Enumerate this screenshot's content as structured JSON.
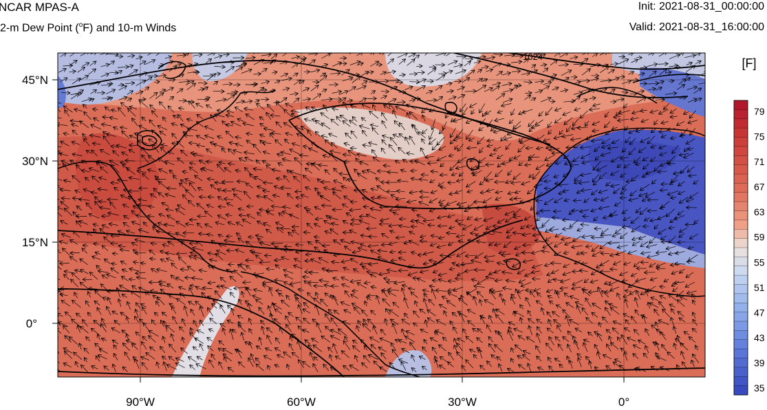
{
  "header": {
    "model": "NCAR MPAS-A",
    "field_prefix": "2-m Dew Point (",
    "field_degree": "o",
    "field_suffix": "F) and 10-m Winds",
    "init": "Init: 2021-08-31_00:00:00",
    "valid": "Valid: 2021-08-31_16:00:00"
  },
  "map": {
    "lat_labels": [
      "45°N",
      "30°N",
      "15°N",
      "0°"
    ],
    "lon_labels": [
      "90°W",
      "60°W",
      "30°W",
      "0°"
    ],
    "contour_label": "1024"
  },
  "colorbar": {
    "unit": "[F]",
    "levels": [
      "79",
      "75",
      "71",
      "67",
      "63",
      "59",
      "55",
      "51",
      "47",
      "43",
      "39",
      "35"
    ],
    "colors": {
      "dark_red": "#b2182b",
      "red": "#d6604d",
      "light_red": "#f4a582",
      "neutral": "#f0e6e0",
      "light_blue": "#c6d6f0",
      "blue": "#6f90e0",
      "dark_blue": "#3b50c8"
    }
  }
}
